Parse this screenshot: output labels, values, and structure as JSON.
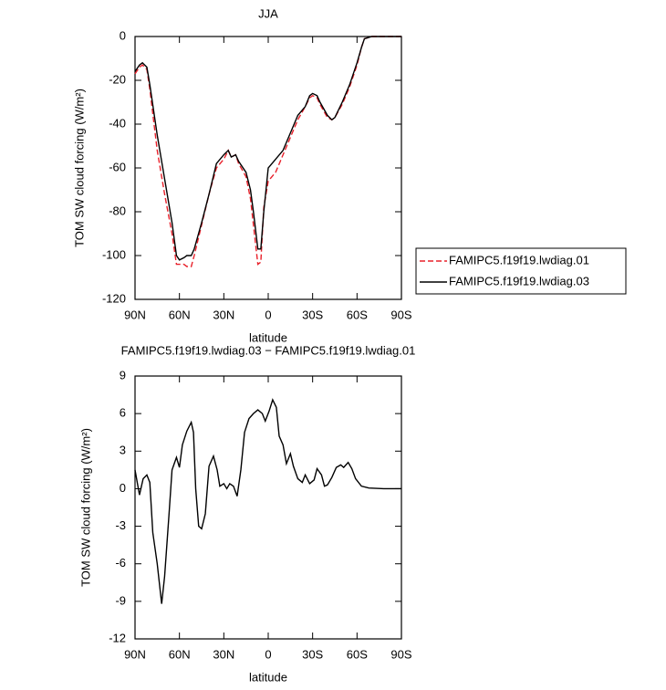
{
  "chart_data": [
    {
      "type": "line",
      "title": "JJA",
      "xlabel": "latitude",
      "ylabel": "TOM SW cloud forcing (W/m²)",
      "x": [
        90,
        87,
        85,
        82,
        80,
        75,
        70,
        65,
        62,
        60,
        57,
        55,
        52,
        50,
        45,
        40,
        35,
        30,
        27,
        25,
        22,
        20,
        15,
        12,
        10,
        7,
        5,
        3,
        0,
        -5,
        -10,
        -15,
        -20,
        -25,
        -28,
        -30,
        -33,
        -35,
        -40,
        -43,
        -45,
        -50,
        -55,
        -60,
        -63,
        -65,
        -70,
        -90
      ],
      "series": [
        {
          "name": "FAMIPC5.f19f19.lwdiag.01",
          "color": "#e8202a",
          "linestyle": "dashed",
          "values": [
            -17,
            -14,
            -13,
            -15,
            -24,
            -52,
            -72,
            -90,
            -104,
            -104,
            -104,
            -105,
            -105,
            -100,
            -86,
            -72,
            -60,
            -56,
            -52,
            -55,
            -54,
            -58,
            -64,
            -74,
            -86,
            -104,
            -103,
            -78,
            -66,
            -62,
            -54,
            -46,
            -38,
            -32,
            -28,
            -27,
            -28,
            -31,
            -37,
            -38,
            -37,
            -31,
            -23,
            -13,
            -5,
            -1,
            0,
            0
          ]
        },
        {
          "name": "FAMIPC5.f19f19.lwdiag.03",
          "color": "#000000",
          "linestyle": "solid",
          "values": [
            -16,
            -13,
            -12,
            -14,
            -22,
            -45,
            -65,
            -85,
            -100,
            -102,
            -101,
            -100,
            -100,
            -97,
            -85,
            -72,
            -58,
            -54,
            -52,
            -55,
            -54,
            -57,
            -62,
            -70,
            -80,
            -97,
            -97,
            -80,
            -60,
            -56,
            -52,
            -44,
            -36,
            -32,
            -27,
            -26,
            -27,
            -30,
            -36,
            -38,
            -37,
            -30,
            -22,
            -12,
            -5,
            -1,
            0,
            0
          ]
        }
      ],
      "xlim": [
        90,
        -90
      ],
      "xticks": [
        {
          "value": 90,
          "label": "90N"
        },
        {
          "value": 60,
          "label": "60N"
        },
        {
          "value": 30,
          "label": "30N"
        },
        0,
        {
          "value": -30,
          "label": "30S"
        },
        {
          "value": -60,
          "label": "60S"
        },
        {
          "value": -90,
          "label": "90S"
        }
      ],
      "ylim": [
        -120,
        0
      ],
      "yticks": [
        0,
        -20,
        -40,
        -60,
        -80,
        -100,
        -120
      ],
      "legend": "outside-right"
    },
    {
      "type": "line",
      "title": "FAMIPC5.f19f19.lwdiag.03 − FAMIPC5.f19f19.lwdiag.01",
      "xlabel": "latitude",
      "ylabel": "TOM SW cloud forcing (W/m²)",
      "x": [
        90,
        87,
        84.5,
        82,
        80,
        78,
        75,
        72,
        70,
        67,
        65,
        62,
        60,
        58,
        55,
        52,
        50.5,
        49,
        47,
        45,
        42.5,
        40,
        37,
        34.5,
        32.7,
        30,
        28,
        26,
        23.5,
        21,
        18.5,
        16,
        13,
        10,
        7,
        4,
        2,
        -0.6,
        -3,
        -5.5,
        -7.4,
        -10,
        -12.3,
        -15,
        -17,
        -20,
        -23,
        -25,
        -28,
        -31,
        -33,
        -36,
        -38,
        -40,
        -43,
        -46,
        -49,
        -51,
        -54,
        -56.5,
        -59,
        -63,
        -68,
        -78,
        -90
      ],
      "series": [
        {
          "color": "#000000",
          "linestyle": "solid",
          "values": [
            1.5,
            -0.5,
            0.8,
            1.1,
            0.5,
            -3.5,
            -6,
            -9.2,
            -7,
            -2,
            1.5,
            2.5,
            1.7,
            3.5,
            4.6,
            5.3,
            4.5,
            0,
            -3,
            -3.2,
            -2,
            1.8,
            2.6,
            1.5,
            0.2,
            0.4,
            0,
            0.4,
            0.2,
            -0.6,
            1.5,
            4.5,
            5.6,
            6,
            6.3,
            6,
            5.4,
            6.2,
            7.1,
            6.5,
            4.2,
            3.5,
            2,
            2.8,
            1.8,
            0.8,
            0.5,
            1.1,
            0.4,
            0.7,
            1.6,
            1.1,
            0.2,
            0.3,
            0.9,
            1.7,
            1.9,
            1.7,
            2.1,
            1.6,
            0.8,
            0.2,
            0.05,
            0,
            0
          ]
        }
      ],
      "xlim": [
        90,
        -90
      ],
      "xticks": [
        {
          "value": 90,
          "label": "90N"
        },
        {
          "value": 60,
          "label": "60N"
        },
        {
          "value": 30,
          "label": "30N"
        },
        0,
        {
          "value": -30,
          "label": "30S"
        },
        {
          "value": -60,
          "label": "60S"
        },
        {
          "value": -90,
          "label": "90S"
        }
      ],
      "ylim": [
        -12,
        9
      ],
      "yticks": [
        9,
        6,
        3,
        0,
        -3,
        -6,
        -9,
        -12
      ]
    }
  ]
}
